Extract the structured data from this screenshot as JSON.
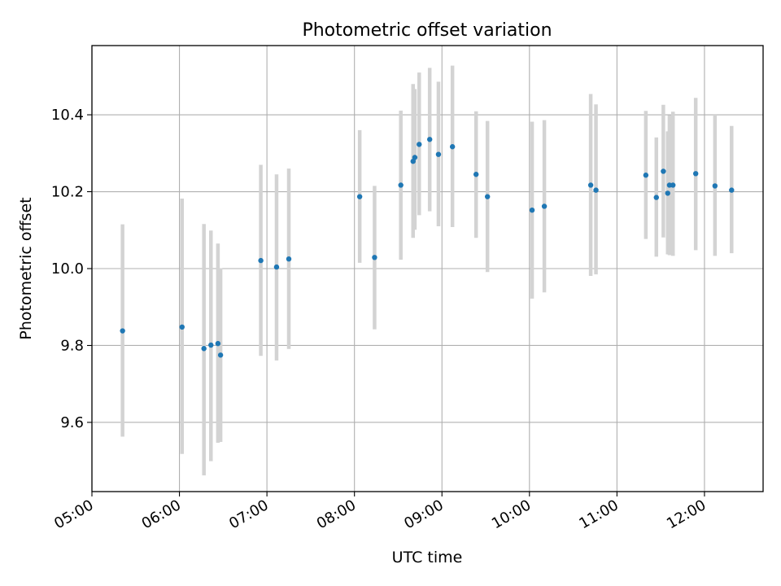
{
  "chart_data": {
    "type": "scatter",
    "title": "Photometric offset variation",
    "xlabel": "UTC time",
    "ylabel": "Photometric offset",
    "grid": true,
    "xlim_hours": [
      5.0,
      12.67
    ],
    "ylim": [
      9.42,
      10.58
    ],
    "x_ticks": [
      {
        "hour": 5,
        "label": "05:00"
      },
      {
        "hour": 6,
        "label": "06:00"
      },
      {
        "hour": 7,
        "label": "07:00"
      },
      {
        "hour": 8,
        "label": "08:00"
      },
      {
        "hour": 9,
        "label": "09:00"
      },
      {
        "hour": 10,
        "label": "10:00"
      },
      {
        "hour": 11,
        "label": "11:00"
      },
      {
        "hour": 12,
        "label": "12:00"
      }
    ],
    "y_ticks": [
      {
        "value": 9.6,
        "label": "9.6"
      },
      {
        "value": 9.8,
        "label": "9.8"
      },
      {
        "value": 10.0,
        "label": "10.0"
      },
      {
        "value": 10.2,
        "label": "10.2"
      },
      {
        "value": 10.4,
        "label": "10.4"
      }
    ],
    "colors": {
      "point": "#1f77b4",
      "errorbar": "#d3d3d3",
      "grid": "#b0b0b0"
    },
    "points": [
      {
        "t": 5.35,
        "y": 9.838,
        "lo": 9.563,
        "hi": 10.115
      },
      {
        "t": 6.03,
        "y": 9.848,
        "lo": 9.518,
        "hi": 10.182
      },
      {
        "t": 6.28,
        "y": 9.792,
        "lo": 9.462,
        "hi": 10.116
      },
      {
        "t": 6.36,
        "y": 9.801,
        "lo": 9.499,
        "hi": 10.099
      },
      {
        "t": 6.44,
        "y": 9.805,
        "lo": 9.547,
        "hi": 10.065
      },
      {
        "t": 6.47,
        "y": 9.775,
        "lo": 9.549,
        "hi": 10.001
      },
      {
        "t": 6.93,
        "y": 10.021,
        "lo": 9.773,
        "hi": 10.27
      },
      {
        "t": 7.11,
        "y": 10.004,
        "lo": 9.761,
        "hi": 10.245
      },
      {
        "t": 7.25,
        "y": 10.025,
        "lo": 9.791,
        "hi": 10.26
      },
      {
        "t": 8.06,
        "y": 10.187,
        "lo": 10.015,
        "hi": 10.36
      },
      {
        "t": 8.23,
        "y": 10.029,
        "lo": 9.842,
        "hi": 10.215
      },
      {
        "t": 8.53,
        "y": 10.217,
        "lo": 10.023,
        "hi": 10.411
      },
      {
        "t": 8.67,
        "y": 10.279,
        "lo": 10.08,
        "hi": 10.48
      },
      {
        "t": 8.69,
        "y": 10.289,
        "lo": 10.101,
        "hi": 10.467
      },
      {
        "t": 8.74,
        "y": 10.323,
        "lo": 10.139,
        "hi": 10.51
      },
      {
        "t": 8.86,
        "y": 10.336,
        "lo": 10.149,
        "hi": 10.522
      },
      {
        "t": 8.96,
        "y": 10.297,
        "lo": 10.11,
        "hi": 10.486
      },
      {
        "t": 9.12,
        "y": 10.317,
        "lo": 10.108,
        "hi": 10.528
      },
      {
        "t": 9.39,
        "y": 10.245,
        "lo": 10.08,
        "hi": 10.409
      },
      {
        "t": 9.52,
        "y": 10.187,
        "lo": 9.991,
        "hi": 10.384
      },
      {
        "t": 10.03,
        "y": 10.152,
        "lo": 9.922,
        "hi": 10.382
      },
      {
        "t": 10.17,
        "y": 10.162,
        "lo": 9.938,
        "hi": 10.386
      },
      {
        "t": 10.7,
        "y": 10.217,
        "lo": 9.981,
        "hi": 10.454
      },
      {
        "t": 10.76,
        "y": 10.204,
        "lo": 9.985,
        "hi": 10.427
      },
      {
        "t": 11.33,
        "y": 10.243,
        "lo": 10.077,
        "hi": 10.41
      },
      {
        "t": 11.45,
        "y": 10.185,
        "lo": 10.031,
        "hi": 10.341
      },
      {
        "t": 11.53,
        "y": 10.253,
        "lo": 10.081,
        "hi": 10.426
      },
      {
        "t": 11.58,
        "y": 10.196,
        "lo": 10.037,
        "hi": 10.357
      },
      {
        "t": 11.6,
        "y": 10.217,
        "lo": 10.035,
        "hi": 10.399
      },
      {
        "t": 11.64,
        "y": 10.217,
        "lo": 10.033,
        "hi": 10.408
      },
      {
        "t": 11.9,
        "y": 10.247,
        "lo": 10.048,
        "hi": 10.444
      },
      {
        "t": 12.12,
        "y": 10.215,
        "lo": 10.033,
        "hi": 10.4
      },
      {
        "t": 12.31,
        "y": 10.204,
        "lo": 10.04,
        "hi": 10.371
      }
    ]
  }
}
